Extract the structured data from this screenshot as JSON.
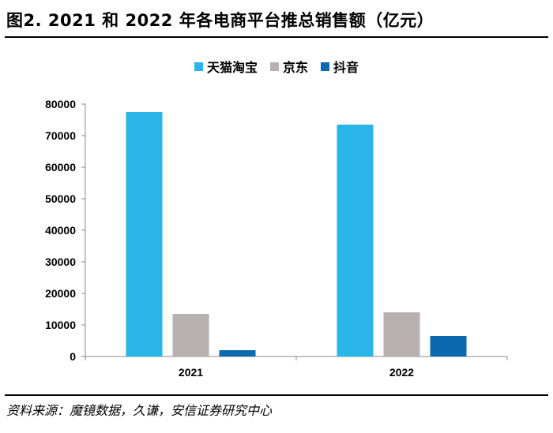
{
  "title": "图2. 2021 和 2022 年各电商平台推总销售额（亿元）",
  "source": "资料来源：魔镜数据，久谦，安信证券研究中心",
  "chart_data": {
    "type": "bar",
    "categories": [
      "2021",
      "2022"
    ],
    "series": [
      {
        "name": "天猫淘宝",
        "color": "#29b5e8",
        "values": [
          77500,
          73500
        ]
      },
      {
        "name": "京东",
        "color": "#b7b0b0",
        "values": [
          13500,
          14000
        ]
      },
      {
        "name": "抖音",
        "color": "#0b6aad",
        "values": [
          2000,
          6500
        ]
      }
    ],
    "ylim": [
      0,
      80000
    ],
    "yticks": [
      "0",
      "10000",
      "20000",
      "30000",
      "40000",
      "50000",
      "60000",
      "70000",
      "80000"
    ],
    "legend_position": "top-center",
    "grid": false
  }
}
